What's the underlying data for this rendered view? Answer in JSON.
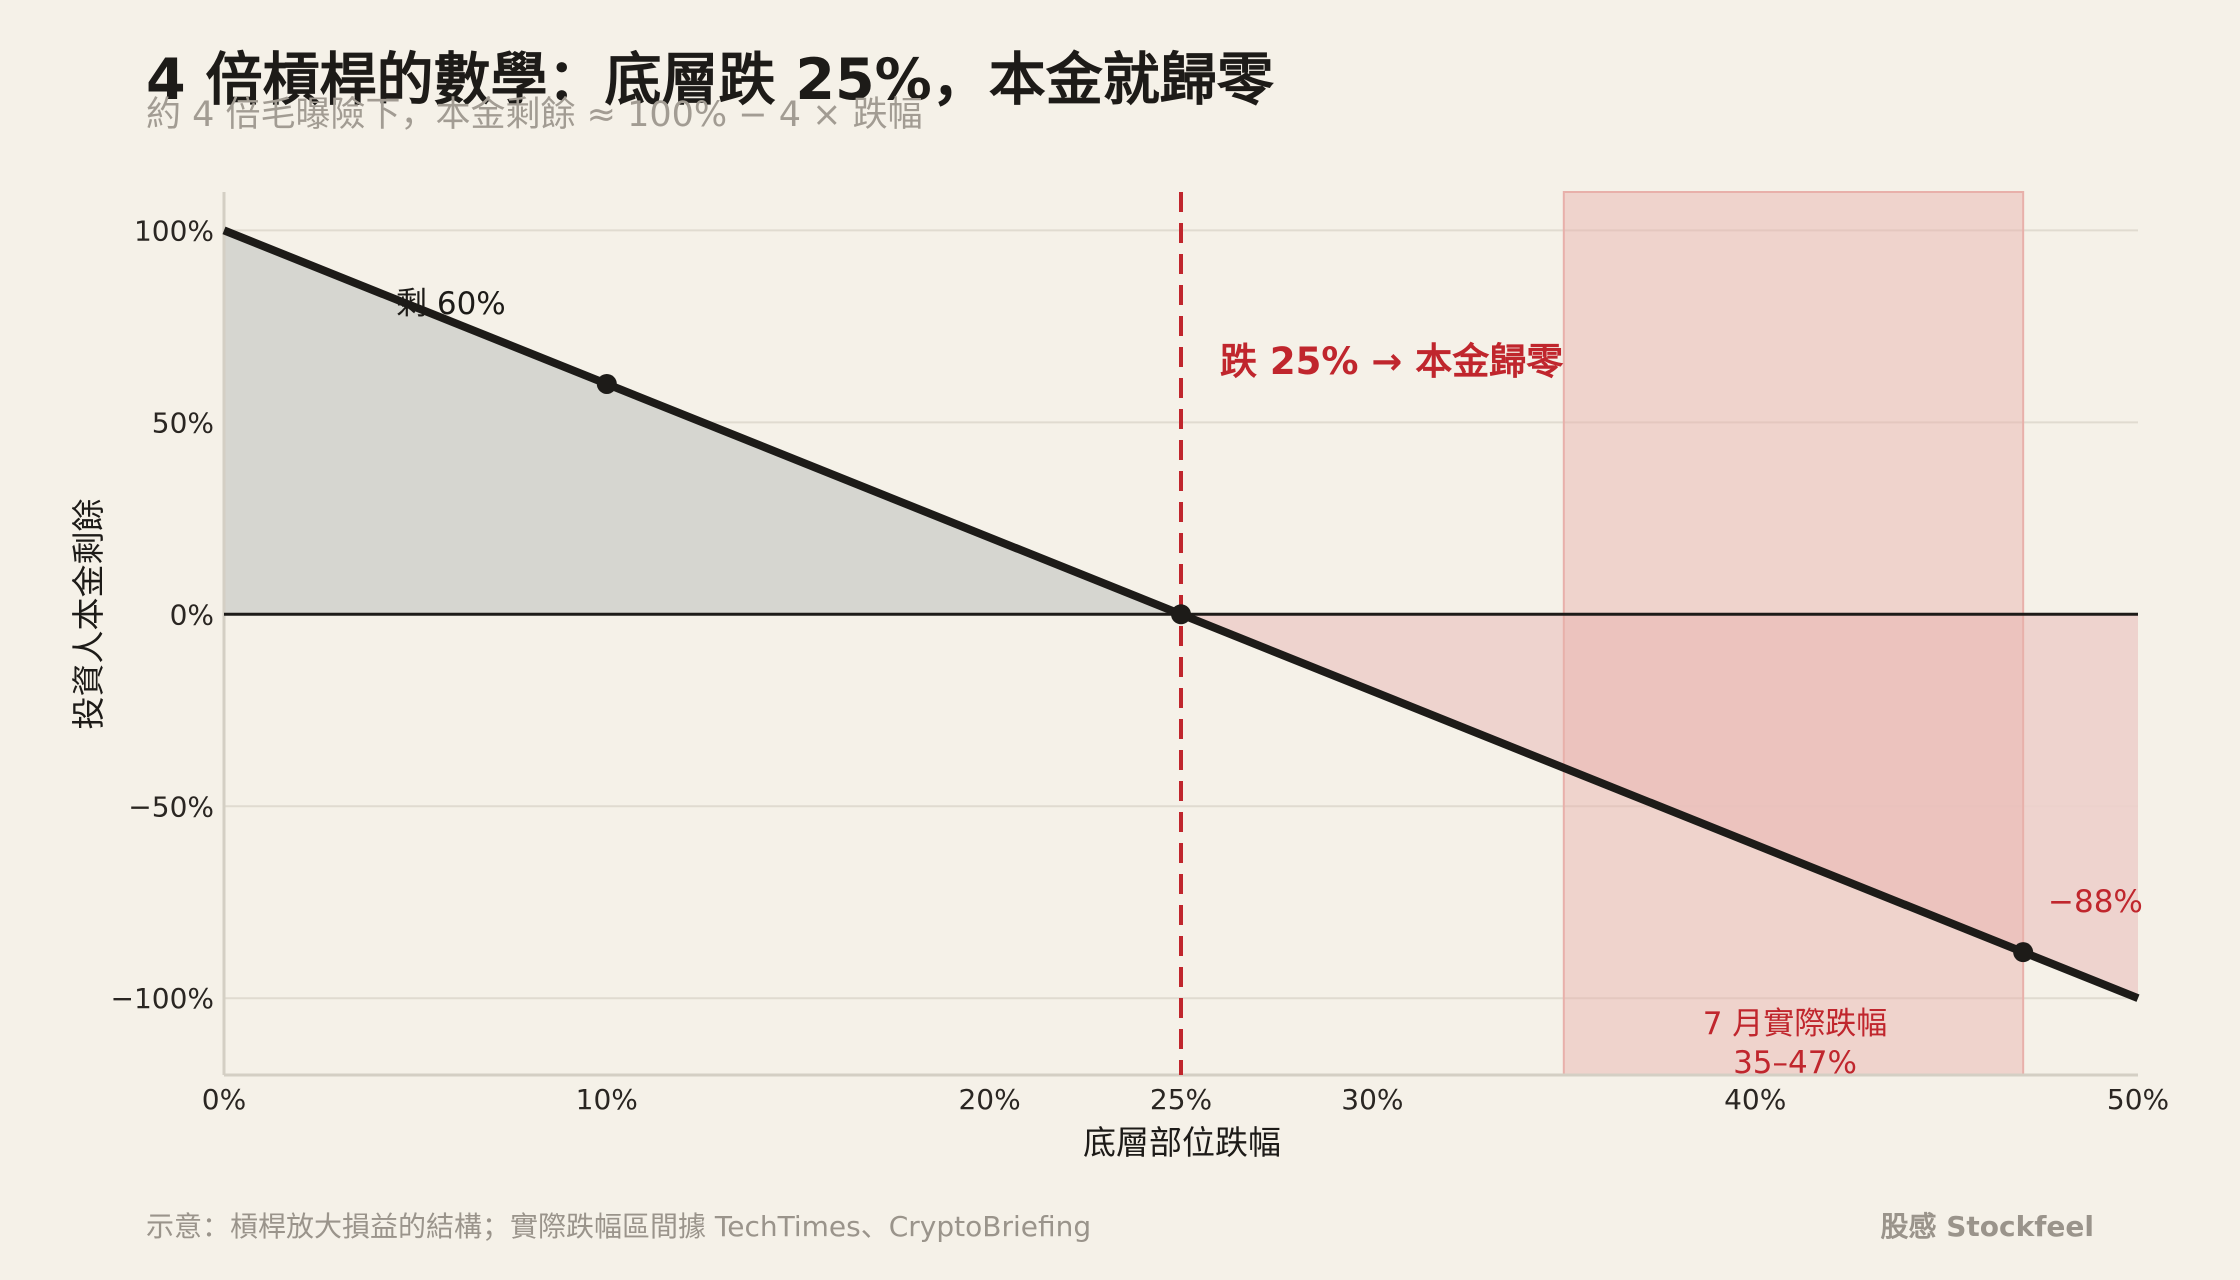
{
  "header": {
    "title": "4 倍槓桿的數學：底層跌 25%，本金就歸零",
    "subtitle": "約 4 倍毛曝險下，本金剩餘 ≈ 100% − 4 × 跌幅"
  },
  "footer": {
    "note": "示意：槓桿放大損益的結構；實際跌幅區間據 TechTimes、CryptoBriefing",
    "brand": "股感 Stockfeel"
  },
  "colors": {
    "background": "#f5f1e8",
    "line": "#1d1b18",
    "accent_red": "#c0262d",
    "gain_fill": "#d6d6d0",
    "loss_fill": "#edcfcb",
    "actual_range_fill": "#e8b0aa",
    "grid": "#e0dbd0"
  },
  "chart_data": {
    "type": "line",
    "xlabel": "底層部位跌幅",
    "ylabel": "投資人本金剩餘",
    "xlim": [
      0,
      50
    ],
    "ylim": [
      -120,
      110
    ],
    "x_ticks": [
      {
        "value": 0,
        "label": "0%"
      },
      {
        "value": 10,
        "label": "10%"
      },
      {
        "value": 20,
        "label": "20%"
      },
      {
        "value": 25,
        "label": "25%"
      },
      {
        "value": 30,
        "label": "30%"
      },
      {
        "value": 40,
        "label": "40%"
      },
      {
        "value": 50,
        "label": "50%"
      }
    ],
    "y_ticks": [
      {
        "value": 100,
        "label": "100%"
      },
      {
        "value": 50,
        "label": "50%"
      },
      {
        "value": 0,
        "label": "0%"
      },
      {
        "value": -50,
        "label": "−50%"
      },
      {
        "value": -100,
        "label": "−100%"
      }
    ],
    "grid": true,
    "series": [
      {
        "x": [
          0,
          50
        ],
        "y": [
          100,
          -100
        ]
      }
    ],
    "points": [
      {
        "x": 10,
        "y": 60
      },
      {
        "x": 25,
        "y": 0
      },
      {
        "x": 47,
        "y": -88
      }
    ],
    "vertical_line": {
      "x": 25,
      "label": "跌 25% → 本金歸零"
    },
    "shaded_range": {
      "x_from": 35,
      "x_to": 47,
      "label_line1": "7 月實際跌幅",
      "label_line2": "35–47%"
    },
    "annotations": {
      "remaining_60": "剩 60%",
      "minus_88": "−88%"
    }
  }
}
